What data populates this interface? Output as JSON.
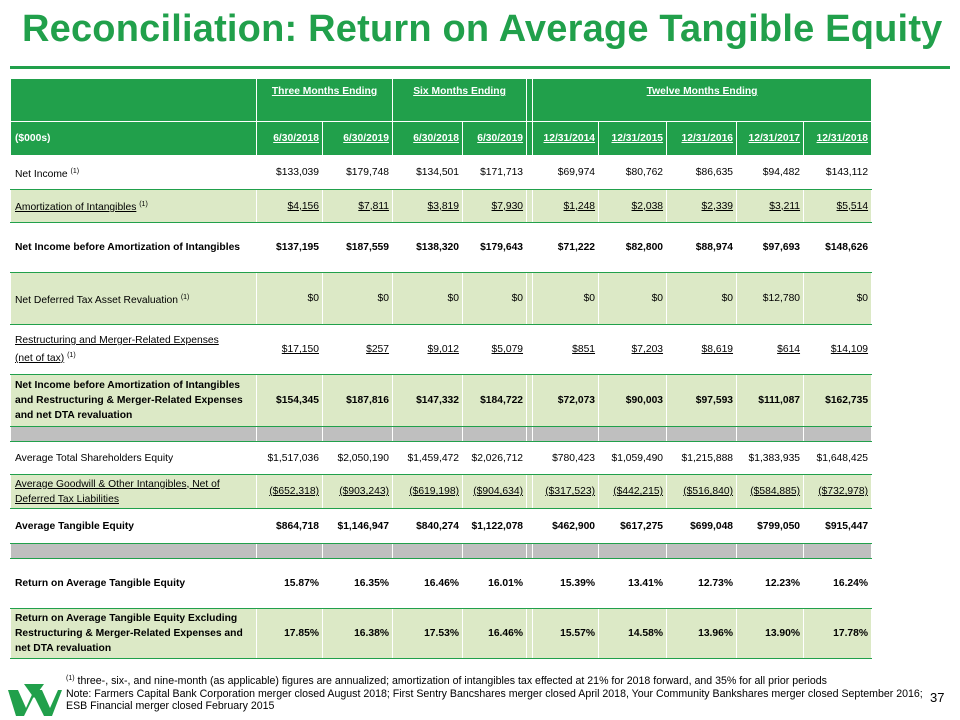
{
  "title": "Reconciliation: Return on Average Tangible Equity",
  "header": {
    "group_three": "Three Months Ending",
    "group_six": "Six Months Ending",
    "group_twelve": "Twelve Months Ending",
    "units": "($000s)",
    "columns": [
      "6/30/2018",
      "6/30/2019",
      "6/30/2018",
      "6/30/2019",
      "12/31/2014",
      "12/31/2015",
      "12/31/2016",
      "12/31/2017",
      "12/31/2018"
    ]
  },
  "rows": {
    "net_income": {
      "label": "Net Income",
      "note": "(1)",
      "values": [
        "$133,039",
        "$179,748",
        "$134,501",
        "$171,713",
        "$69,974",
        "$80,762",
        "$86,635",
        "$94,482",
        "$143,112"
      ]
    },
    "amortization": {
      "label": "Amortization of Intangibles",
      "note": "(1)",
      "values": [
        "$4,156",
        "$7,811",
        "$3,819",
        "$7,930",
        "$1,248",
        "$2,038",
        "$2,339",
        "$3,211",
        "$5,514"
      ]
    },
    "ni_before_amort": {
      "label": "Net Income before Amortization of Intangibles",
      "values": [
        "$137,195",
        "$187,559",
        "$138,320",
        "$179,643",
        "$71,222",
        "$82,800",
        "$88,974",
        "$97,693",
        "$148,626"
      ]
    },
    "dta": {
      "label": "Net Deferred Tax Asset Revaluation",
      "note": "(1)",
      "values": [
        "$0",
        "$0",
        "$0",
        "$0",
        "$0",
        "$0",
        "$0",
        "$12,780",
        "$0"
      ]
    },
    "restructuring": {
      "label1": "Restructuring and Merger-Related Expenses",
      "label2": "(net of tax)",
      "note": "(1)",
      "values": [
        "$17,150",
        "$257",
        "$9,012",
        "$5,079",
        "$851",
        "$7,203",
        "$8,619",
        "$614",
        "$14,109"
      ]
    },
    "ni_adjusted": {
      "label": "Net Income before Amortization of Intangibles and Restructuring & Merger-Related Expenses and net DTA revaluation",
      "values": [
        "$154,345",
        "$187,816",
        "$147,332",
        "$184,722",
        "$72,073",
        "$90,003",
        "$97,593",
        "$111,087",
        "$162,735"
      ]
    },
    "avg_equity": {
      "label": "Average Total Shareholders Equity",
      "values": [
        "$1,517,036",
        "$2,050,190",
        "$1,459,472",
        "$2,026,712",
        "$780,423",
        "$1,059,490",
        "$1,215,888",
        "$1,383,935",
        "$1,648,425"
      ]
    },
    "avg_goodwill": {
      "label": "Average Goodwill & Other Intangibles, Net of Deferred Tax Liabilities",
      "values": [
        "($652,318)",
        "($903,243)",
        "($619,198)",
        "($904,634)",
        "($317,523)",
        "($442,215)",
        "($516,840)",
        "($584,885)",
        "($732,978)"
      ]
    },
    "avg_tangible": {
      "label": "Average Tangible Equity",
      "values": [
        "$864,718",
        "$1,146,947",
        "$840,274",
        "$1,122,078",
        "$462,900",
        "$617,275",
        "$699,048",
        "$799,050",
        "$915,447"
      ]
    },
    "rote": {
      "label": "Return on Average Tangible Equity",
      "values": [
        "15.87%",
        "16.35%",
        "16.46%",
        "16.01%",
        "15.39%",
        "13.41%",
        "12.73%",
        "12.23%",
        "16.24%"
      ]
    },
    "rote_adj": {
      "label": "Return on Average Tangible Equity Excluding Restructuring & Merger-Related Expenses and net DTA revaluation",
      "values": [
        "17.85%",
        "16.38%",
        "17.53%",
        "16.46%",
        "15.57%",
        "14.58%",
        "13.96%",
        "13.90%",
        "17.78%"
      ]
    }
  },
  "footnote": {
    "marker": "(1)",
    "line1": "three-, six-, and nine-month (as applicable) figures are annualized; amortization of intangibles tax effected at 21% for 2018 forward, and 35% for all prior periods",
    "line2": "Note: Farmers Capital Bank Corporation merger closed August 2018; First Sentry Bancshares merger closed April 2018, Your Community Bankshares merger closed September 2016; ESB Financial merger closed February 2015"
  },
  "page_number": "37",
  "colors": {
    "brand_green": "#21a04b",
    "light_green": "#dce9c6",
    "gray": "#bfbfbf"
  }
}
